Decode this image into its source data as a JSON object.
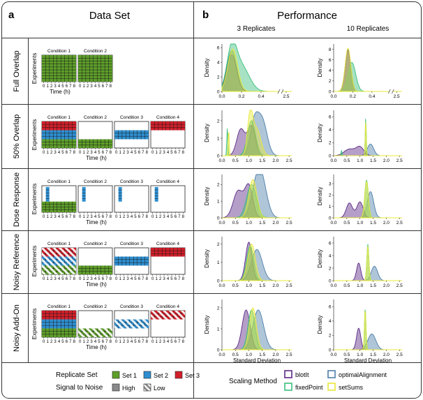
{
  "panels": {
    "a": {
      "letter": "a",
      "title": "Data Set"
    },
    "b": {
      "letter": "b",
      "title": "Performance",
      "col_headers": [
        "3 Replicates",
        "10 Replicates"
      ]
    }
  },
  "colors": {
    "set1": "#5e9e2a",
    "set2": "#2f8fd0",
    "set3": "#d01f2a",
    "blotIt": "#5b2a86",
    "optimalAlignment": "#4d7fa8",
    "fixedPoint": "#3bbf7c",
    "setSums": "#e8e83a"
  },
  "schematic": {
    "ylabel": "Experiments",
    "xlabel": "Time (h)",
    "ticks": [
      "0",
      "1",
      "2",
      "3",
      "4",
      "5",
      "6",
      "7",
      "8"
    ]
  },
  "rows": [
    {
      "label": "Full Overlap",
      "conditions": [
        {
          "title": "Condition 1",
          "fill": [
            {
              "set": "set1",
              "from": 0,
              "to": 1,
              "noise": "high"
            }
          ]
        },
        {
          "title": "Condition 2",
          "fill": [
            {
              "set": "set1",
              "from": 0,
              "to": 1,
              "noise": "high"
            }
          ]
        }
      ]
    },
    {
      "label": "50% Overlap",
      "conditions": [
        {
          "title": "Condition 1",
          "fill": [
            {
              "set": "set3",
              "from": 0,
              "to": 0.33,
              "noise": "high"
            },
            {
              "set": "set2",
              "from": 0.33,
              "to": 0.67,
              "noise": "high"
            },
            {
              "set": "set1",
              "from": 0.67,
              "to": 1,
              "noise": "high"
            }
          ]
        },
        {
          "title": "Condition 2",
          "fill": [
            {
              "set": "set1",
              "from": 0.67,
              "to": 1,
              "noise": "high"
            }
          ]
        },
        {
          "title": "Condition 3",
          "fill": [
            {
              "set": "set2",
              "from": 0.33,
              "to": 0.67,
              "noise": "high"
            }
          ]
        },
        {
          "title": "Condition 4",
          "fill": [
            {
              "set": "set3",
              "from": 0,
              "to": 0.33,
              "noise": "high"
            }
          ]
        }
      ]
    },
    {
      "label": "Dose Response",
      "conditions": [
        {
          "title": "Condition 1",
          "fill": [
            {
              "set": "set1",
              "from": 0.6,
              "to": 1,
              "noise": "high"
            },
            {
              "set": "set2",
              "from": 0.05,
              "to": 0.6,
              "noise": "high",
              "timepoint": 1
            }
          ]
        },
        {
          "title": "Condition 2",
          "fill": [
            {
              "set": "set2",
              "from": 0.05,
              "to": 0.6,
              "noise": "high",
              "timepoint": 1
            }
          ]
        },
        {
          "title": "Condition 3",
          "fill": [
            {
              "set": "set2",
              "from": 0.05,
              "to": 0.6,
              "noise": "high",
              "timepoint": 1
            }
          ]
        },
        {
          "title": "Condition 4",
          "fill": [
            {
              "set": "set2",
              "from": 0.05,
              "to": 0.6,
              "noise": "high",
              "timepoint": 1
            }
          ]
        }
      ]
    },
    {
      "label": "Noisy Reference",
      "conditions": [
        {
          "title": "Condition 1",
          "fill": [
            {
              "set": "set3",
              "from": 0,
              "to": 0.33,
              "noise": "low"
            },
            {
              "set": "set2",
              "from": 0.33,
              "to": 0.67,
              "noise": "low"
            },
            {
              "set": "set1",
              "from": 0.67,
              "to": 1,
              "noise": "low"
            }
          ]
        },
        {
          "title": "Condition 2",
          "fill": [
            {
              "set": "set1",
              "from": 0.67,
              "to": 1,
              "noise": "high"
            }
          ]
        },
        {
          "title": "Condition 3",
          "fill": [
            {
              "set": "set2",
              "from": 0.33,
              "to": 0.67,
              "noise": "high"
            }
          ]
        },
        {
          "title": "Condition 4",
          "fill": [
            {
              "set": "set3",
              "from": 0,
              "to": 0.33,
              "noise": "high"
            }
          ]
        }
      ]
    },
    {
      "label": "Noisy Add-On",
      "conditions": [
        {
          "title": "Condition 1",
          "fill": [
            {
              "set": "set3",
              "from": 0,
              "to": 0.33,
              "noise": "high"
            },
            {
              "set": "set2",
              "from": 0.33,
              "to": 0.67,
              "noise": "high"
            },
            {
              "set": "set1",
              "from": 0.67,
              "to": 1,
              "noise": "high"
            }
          ]
        },
        {
          "title": "Condition 2",
          "fill": [
            {
              "set": "set1",
              "from": 0.67,
              "to": 1,
              "noise": "low"
            }
          ]
        },
        {
          "title": "Condition 3",
          "fill": [
            {
              "set": "set2",
              "from": 0.33,
              "to": 0.67,
              "noise": "low"
            }
          ]
        },
        {
          "title": "Condition 4",
          "fill": [
            {
              "set": "set3",
              "from": 0,
              "to": 0.33,
              "noise": "low"
            }
          ]
        }
      ]
    }
  ],
  "chart_data": [
    {
      "type": "area",
      "row": "Full Overlap",
      "replicates": "3 Replicates",
      "ylabel": "Density",
      "xlabel": "",
      "xlim": [
        0,
        2.6
      ],
      "axis_break": [
        0.6,
        2.4
      ],
      "xticks": [
        "0.0",
        "0.2",
        "0.4",
        "2.5"
      ],
      "yticks": [
        "0",
        "2",
        "4",
        "6"
      ],
      "ylim": [
        0,
        6.5
      ],
      "series": [
        {
          "name": "fixedPoint",
          "peaks": [
            [
              0.1,
              5.3,
              0.05
            ],
            [
              0.2,
              3.4,
              0.08
            ]
          ]
        },
        {
          "name": "optimalAlignment",
          "peaks": [
            [
              0.1,
              5.6,
              0.05
            ]
          ]
        },
        {
          "name": "blotIt",
          "peaks": [
            [
              0.1,
              5.0,
              0.05
            ]
          ]
        },
        {
          "name": "setSums",
          "peaks": [
            [
              0.11,
              5.8,
              0.05
            ]
          ]
        }
      ]
    },
    {
      "type": "area",
      "row": "Full Overlap",
      "replicates": "10 Replicates",
      "ylabel": "Density",
      "xlabel": "",
      "xlim": [
        0,
        2.6
      ],
      "axis_break": [
        0.6,
        2.4
      ],
      "xticks": [
        "0.0",
        "0.2",
        "0.4",
        "2.5"
      ],
      "yticks": [
        "0",
        "2",
        "4",
        "6",
        "8"
      ],
      "ylim": [
        0,
        9
      ],
      "series": [
        {
          "name": "fixedPoint",
          "peaks": [
            [
              0.19,
              5.5,
              0.04
            ]
          ]
        },
        {
          "name": "optimalAlignment",
          "peaks": [
            [
              0.15,
              8.0,
              0.03
            ]
          ]
        },
        {
          "name": "blotIt",
          "peaks": [
            [
              0.15,
              7.8,
              0.03
            ]
          ]
        },
        {
          "name": "setSums",
          "peaks": [
            [
              0.15,
              8.2,
              0.03
            ]
          ]
        }
      ]
    },
    {
      "type": "area",
      "row": "50% Overlap",
      "replicates": "3 Replicates",
      "ylabel": "Density",
      "xlabel": "",
      "xlim": [
        0,
        2.6
      ],
      "xticks": [
        "0.0",
        "0.5",
        "1.0",
        "1.5",
        "2.0",
        "2.5"
      ],
      "yticks": [
        "0",
        "1",
        "2"
      ],
      "ylim": [
        0,
        2.6
      ],
      "series": [
        {
          "name": "optimalAlignment",
          "peaks": [
            [
              1.2,
              1.8,
              0.15
            ],
            [
              1.5,
              2.0,
              0.18
            ]
          ]
        },
        {
          "name": "blotIt",
          "peaks": [
            [
              0.7,
              1.5,
              0.15
            ],
            [
              1.1,
              1.7,
              0.15
            ]
          ]
        },
        {
          "name": "fixedPoint",
          "peaks": [
            [
              0.2,
              1.6,
              0.02
            ],
            [
              1.1,
              2.0,
              0.15
            ]
          ]
        },
        {
          "name": "setSums",
          "peaks": [
            [
              0.25,
              1.5,
              0.02
            ],
            [
              1.05,
              2.3,
              0.1
            ],
            [
              1.3,
              1.5,
              0.15
            ]
          ]
        }
      ]
    },
    {
      "type": "area",
      "row": "50% Overlap",
      "replicates": "10 Replicates",
      "ylabel": "Density",
      "xlabel": "",
      "xlim": [
        0,
        2.6
      ],
      "xticks": [
        "0.0",
        "0.5",
        "1.0",
        "1.5",
        "2.0",
        "2.5"
      ],
      "yticks": [
        "0",
        "2",
        "4",
        "6"
      ],
      "ylim": [
        0,
        7
      ],
      "series": [
        {
          "name": "optimalAlignment",
          "peaks": [
            [
              1.4,
              1.8,
              0.12
            ]
          ]
        },
        {
          "name": "blotIt",
          "peaks": [
            [
              0.6,
              1.0,
              0.2
            ],
            [
              1.0,
              1.3,
              0.15
            ]
          ]
        },
        {
          "name": "fixedPoint",
          "peaks": [
            [
              0.3,
              0.8,
              0.02
            ],
            [
              1.22,
              6.0,
              0.02
            ]
          ]
        },
        {
          "name": "setSums",
          "peaks": [
            [
              1.22,
              5.5,
              0.02
            ]
          ]
        }
      ]
    },
    {
      "type": "area",
      "row": "Dose Response",
      "replicates": "3 Replicates",
      "ylabel": "Density",
      "xlabel": "",
      "xlim": [
        0,
        2.6
      ],
      "xticks": [
        "0.0",
        "0.5",
        "1.0",
        "1.5",
        "2.0",
        "2.5"
      ],
      "yticks": [
        "0",
        "1",
        "2"
      ],
      "ylim": [
        0,
        2.6
      ],
      "series": [
        {
          "name": "optimalAlignment",
          "peaks": [
            [
              1.3,
              1.8,
              0.2
            ],
            [
              1.5,
              1.6,
              0.2
            ]
          ]
        },
        {
          "name": "blotIt",
          "peaks": [
            [
              0.6,
              1.6,
              0.18
            ],
            [
              1.0,
              1.9,
              0.15
            ]
          ]
        },
        {
          "name": "fixedPoint",
          "peaks": [
            [
              1.1,
              2.0,
              0.18
            ]
          ]
        },
        {
          "name": "setSums",
          "peaks": [
            [
              1.15,
              2.3,
              0.15
            ]
          ]
        }
      ]
    },
    {
      "type": "area",
      "row": "Dose Response",
      "replicates": "10 Replicates",
      "ylabel": "Density",
      "xlabel": "",
      "xlim": [
        0,
        2.6
      ],
      "xticks": [
        "0.0",
        "0.5",
        "1.0",
        "1.5",
        "2.0",
        "2.5"
      ],
      "yticks": [
        "0",
        "1",
        "2",
        "3"
      ],
      "ylim": [
        0,
        3.8
      ],
      "series": [
        {
          "name": "optimalAlignment",
          "peaks": [
            [
              1.4,
              2.3,
              0.12
            ]
          ]
        },
        {
          "name": "blotIt",
          "peaks": [
            [
              0.6,
              1.3,
              0.12
            ],
            [
              1.0,
              1.4,
              0.12
            ]
          ]
        },
        {
          "name": "fixedPoint",
          "peaks": [
            [
              1.25,
              3.3,
              0.07
            ]
          ]
        },
        {
          "name": "setSums",
          "peaks": [
            [
              1.25,
              3.2,
              0.07
            ]
          ]
        }
      ]
    },
    {
      "type": "area",
      "row": "Noisy Reference",
      "replicates": "3 Replicates",
      "ylabel": "Density",
      "xlabel": "",
      "xlim": [
        0,
        2.6
      ],
      "xticks": [
        "0.0",
        "0.5",
        "1.0",
        "1.5",
        "2.0",
        "2.5"
      ],
      "yticks": [
        "0",
        "1",
        "2"
      ],
      "ylim": [
        0,
        2.4
      ],
      "series": [
        {
          "name": "optimalAlignment",
          "peaks": [
            [
              1.3,
              1.7,
              0.2
            ]
          ]
        },
        {
          "name": "blotIt",
          "peaks": [
            [
              1.0,
              2.1,
              0.12
            ]
          ]
        },
        {
          "name": "fixedPoint",
          "peaks": [
            [
              1.05,
              1.9,
              0.13
            ]
          ]
        },
        {
          "name": "setSums",
          "peaks": [
            [
              1.1,
              2.0,
              0.14
            ]
          ]
        }
      ]
    },
    {
      "type": "area",
      "row": "Noisy Reference",
      "replicates": "10 Replicates",
      "ylabel": "Density",
      "xlabel": "",
      "xlim": [
        0,
        2.6
      ],
      "xticks": [
        "0.0",
        "0.5",
        "1.0",
        "1.5",
        "2.0",
        "2.5"
      ],
      "yticks": [
        "0",
        "2",
        "4",
        "6"
      ],
      "ylim": [
        0,
        7
      ],
      "series": [
        {
          "name": "optimalAlignment",
          "peaks": [
            [
              1.55,
              2.3,
              0.12
            ]
          ]
        },
        {
          "name": "blotIt",
          "peaks": [
            [
              0.95,
              2.8,
              0.08
            ]
          ]
        },
        {
          "name": "fixedPoint",
          "peaks": [
            [
              1.3,
              5.8,
              0.04
            ]
          ]
        },
        {
          "name": "setSums",
          "peaks": [
            [
              1.3,
              5.5,
              0.04
            ]
          ]
        }
      ]
    },
    {
      "type": "area",
      "row": "Noisy Add-On",
      "replicates": "3 Replicates",
      "ylabel": "Density",
      "xlabel": "Standard Deviation",
      "xlim": [
        0,
        2.6
      ],
      "xticks": [
        "0.0",
        "0.5",
        "1.0",
        "1.5",
        "2.0",
        "2.5"
      ],
      "yticks": [
        "0",
        "1",
        "2"
      ],
      "ylim": [
        0,
        2.4
      ],
      "series": [
        {
          "name": "optimalAlignment",
          "peaks": [
            [
              1.35,
              1.9,
              0.2
            ]
          ]
        },
        {
          "name": "blotIt",
          "peaks": [
            [
              0.9,
              1.9,
              0.15
            ]
          ]
        },
        {
          "name": "fixedPoint",
          "peaks": [
            [
              1.1,
              1.9,
              0.13
            ]
          ]
        },
        {
          "name": "setSums",
          "peaks": [
            [
              1.15,
              2.0,
              0.13
            ]
          ]
        }
      ]
    },
    {
      "type": "area",
      "row": "Noisy Add-On",
      "replicates": "10 Replicates",
      "ylabel": "Density",
      "xlabel": "Standard Deviation",
      "xlim": [
        0,
        2.6
      ],
      "xticks": [
        "0.0",
        "0.5",
        "1.0",
        "1.5",
        "2.0",
        "2.5"
      ],
      "yticks": [
        "0",
        "2",
        "4",
        "6"
      ],
      "ylim": [
        0,
        7
      ],
      "series": [
        {
          "name": "optimalAlignment",
          "peaks": [
            [
              1.45,
              2.2,
              0.15
            ]
          ]
        },
        {
          "name": "blotIt",
          "peaks": [
            [
              0.95,
              3.0,
              0.08
            ]
          ]
        },
        {
          "name": "fixedPoint",
          "peaks": [
            [
              1.2,
              5.8,
              0.03
            ]
          ]
        },
        {
          "name": "setSums",
          "peaks": [
            [
              1.2,
              5.6,
              0.03
            ]
          ]
        }
      ]
    }
  ],
  "legend": {
    "replicate_title": "Replicate Set",
    "sets": [
      {
        "key": "set1",
        "label": "Set 1"
      },
      {
        "key": "set2",
        "label": "Set 2"
      },
      {
        "key": "set3",
        "label": "Set 3"
      }
    ],
    "noise_title": "Signal to Noise",
    "noise": [
      {
        "key": "high",
        "label": "High"
      },
      {
        "key": "low",
        "label": "Low"
      }
    ],
    "method_title": "Scaling Method",
    "methods": [
      {
        "key": "blotIt",
        "label": "blotIt"
      },
      {
        "key": "optimalAlignment",
        "label": "optimalAlignment"
      },
      {
        "key": "fixedPoint",
        "label": "fixedPoint"
      },
      {
        "key": "setSums",
        "label": "setSums"
      }
    ]
  }
}
